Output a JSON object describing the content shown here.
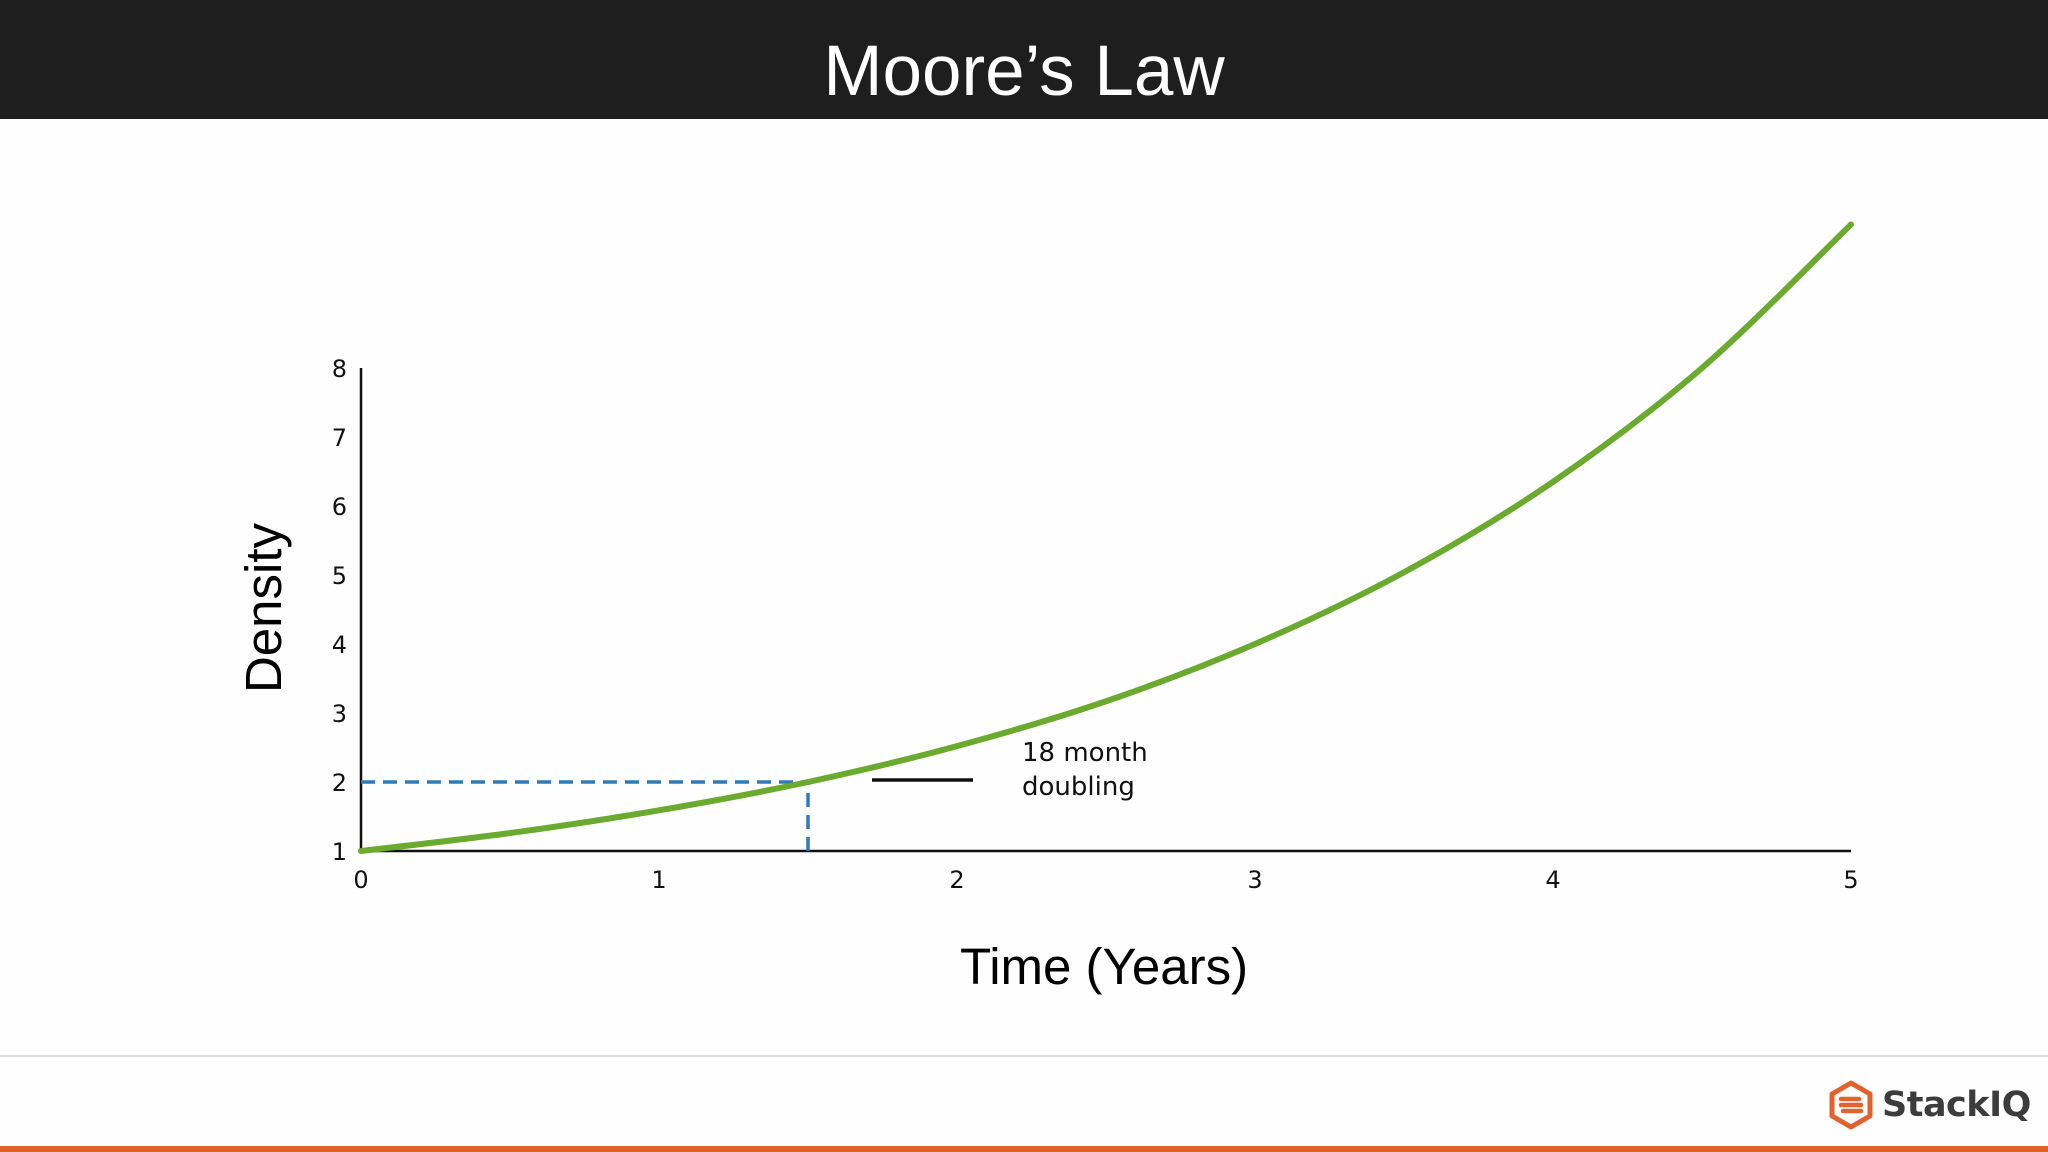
{
  "slide": {
    "title": "Moore’s Law"
  },
  "chart_data": {
    "type": "line",
    "title": "",
    "xlabel": "Time (Years)",
    "ylabel": "Density",
    "xlim": [
      0,
      5
    ],
    "ylim": [
      1,
      8
    ],
    "x_ticks": [
      "0",
      "1",
      "2",
      "3",
      "4",
      "5"
    ],
    "y_ticks": [
      "1",
      "2",
      "3",
      "4",
      "5",
      "6",
      "7",
      "8"
    ],
    "grid": false,
    "series": [
      {
        "x": [
          0,
          0.5,
          1,
          1.5,
          2,
          2.5,
          3,
          3.5,
          4,
          4.5,
          5
        ],
        "y": [
          1,
          1.26,
          1.59,
          2,
          2.52,
          3.17,
          4,
          5.04,
          6.35,
          8,
          10.08
        ],
        "color": "#6aaa2e"
      }
    ],
    "reference_lines": [
      {
        "from": [
          0,
          2
        ],
        "to": [
          1.5,
          2
        ],
        "style": "dashed",
        "color": "#2f7ab8"
      },
      {
        "from": [
          1.5,
          1
        ],
        "to": [
          1.5,
          2
        ],
        "style": "dashed",
        "color": "#2f7ab8"
      }
    ],
    "legend": {
      "entries": [
        "18 month doubling"
      ],
      "placement": "inside, right of the dashed marker"
    },
    "annotation_lines": [
      "18 month",
      "doubling"
    ]
  },
  "footer": {
    "logo_text": "StackIQ",
    "logo_icon": "stackiq-logo-icon",
    "accent_color": "#e0622c"
  }
}
